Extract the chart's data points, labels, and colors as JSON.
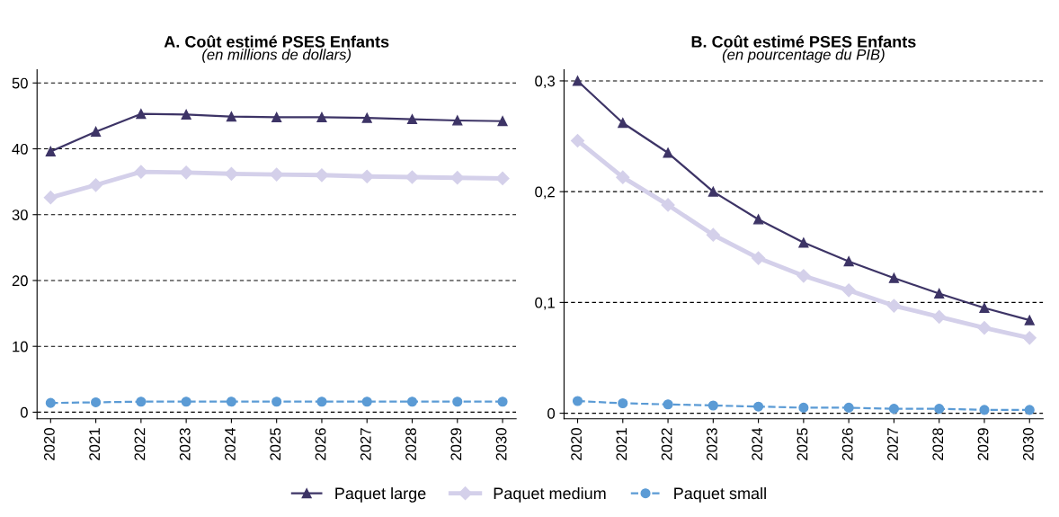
{
  "chart_data": [
    {
      "type": "line",
      "title": "A. Coût estimé PSES Enfants",
      "subtitle": "(en millions de dollars)",
      "categories": [
        "2020",
        "2021",
        "2022",
        "2023",
        "2024",
        "2025",
        "2026",
        "2027",
        "2028",
        "2029",
        "2030"
      ],
      "series": [
        {
          "name": "Paquet large",
          "color": "#3d3466",
          "marker": "triangle",
          "line_style": "solid",
          "values": [
            39.6,
            42.6,
            45.3,
            45.2,
            44.9,
            44.8,
            44.8,
            44.7,
            44.5,
            44.3,
            44.2
          ]
        },
        {
          "name": "Paquet medium",
          "color": "#d4d0ea",
          "marker": "diamond",
          "line_style": "solid",
          "values": [
            32.6,
            34.5,
            36.5,
            36.4,
            36.2,
            36.1,
            36.0,
            35.8,
            35.7,
            35.6,
            35.5
          ]
        },
        {
          "name": "Paquet small",
          "color": "#5b9bd5",
          "marker": "circle",
          "line_style": "dashed",
          "values": [
            1.4,
            1.5,
            1.6,
            1.6,
            1.6,
            1.6,
            1.6,
            1.6,
            1.6,
            1.6,
            1.6
          ]
        }
      ],
      "ylim": [
        -1,
        52
      ],
      "yticks": [
        0,
        10,
        20,
        30,
        40,
        50
      ],
      "grid": "y",
      "legend": "bottom"
    },
    {
      "type": "line",
      "title": "B. Coût estimé PSES Enfants",
      "subtitle": "(en pourcentage du PIB)",
      "categories": [
        "2020",
        "2021",
        "2022",
        "2023",
        "2024",
        "2025",
        "2026",
        "2027",
        "2028",
        "2029",
        "2030"
      ],
      "series": [
        {
          "name": "Paquet large",
          "color": "#3d3466",
          "marker": "triangle",
          "line_style": "solid",
          "values": [
            0.3,
            0.262,
            0.235,
            0.2,
            0.175,
            0.154,
            0.137,
            0.122,
            0.108,
            0.095,
            0.084
          ]
        },
        {
          "name": "Paquet medium",
          "color": "#d4d0ea",
          "marker": "diamond",
          "line_style": "solid",
          "values": [
            0.246,
            0.213,
            0.188,
            0.161,
            0.14,
            0.124,
            0.111,
            0.097,
            0.087,
            0.077,
            0.068
          ]
        },
        {
          "name": "Paquet small",
          "color": "#5b9bd5",
          "marker": "circle",
          "line_style": "dashed",
          "values": [
            0.011,
            0.009,
            0.008,
            0.007,
            0.006,
            0.005,
            0.005,
            0.004,
            0.004,
            0.003,
            0.003
          ]
        }
      ],
      "ylim": [
        -0.005,
        0.31
      ],
      "yticks": [
        0,
        {
          "value": 0.1,
          "label": "0,1"
        },
        {
          "value": 0.2,
          "label": "0,2"
        },
        {
          "value": 0.3,
          "label": "0,3"
        }
      ],
      "grid": "y",
      "legend": "bottom"
    }
  ]
}
